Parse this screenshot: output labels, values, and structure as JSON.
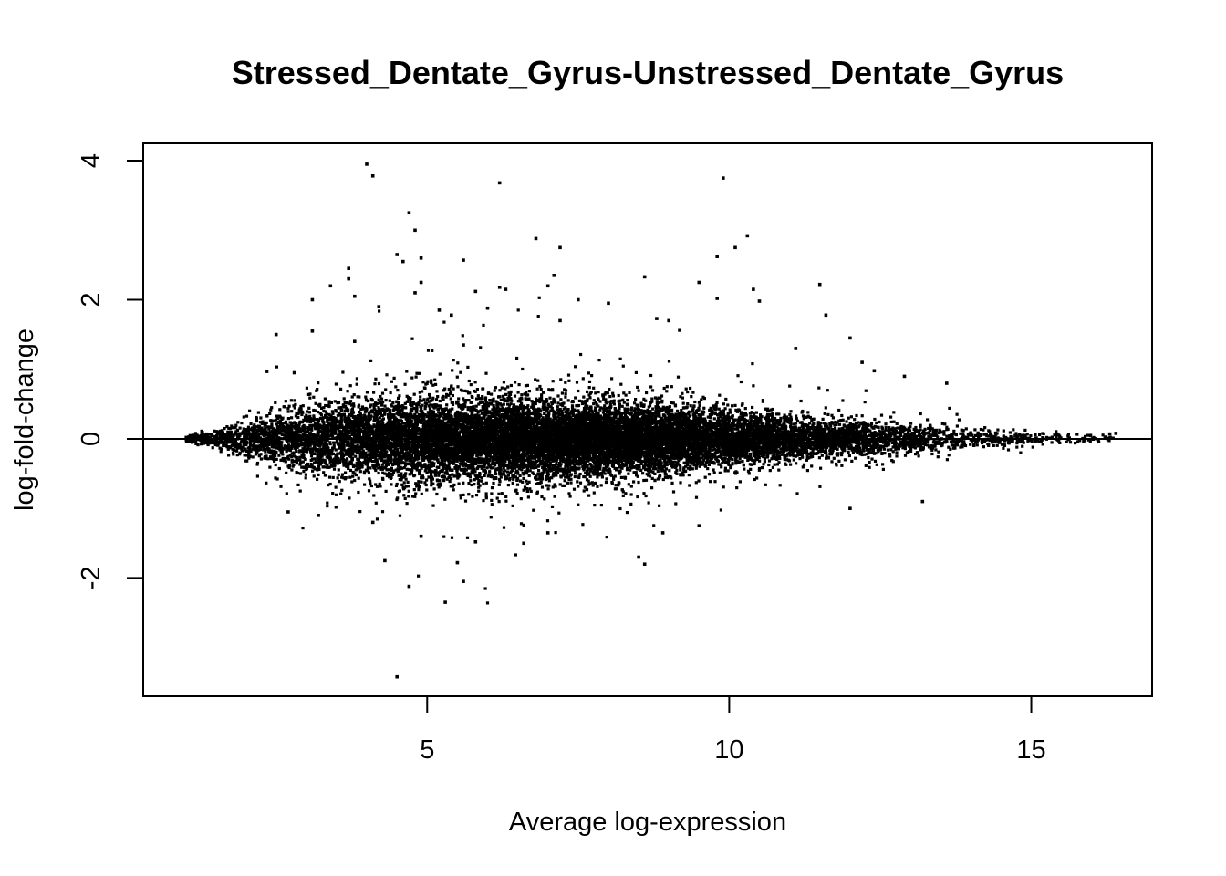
{
  "chart_data": {
    "type": "scatter",
    "title": "Stressed_Dentate_Gyrus-Unstressed_Dentate_Gyrus",
    "xlabel": "Average log-expression",
    "ylabel": "log-fold-change",
    "xlim": [
      0.3,
      17
    ],
    "ylim": [
      -3.7,
      4.25
    ],
    "xticks": [
      5,
      10,
      15
    ],
    "yticks": [
      -2,
      0,
      2,
      4
    ],
    "xtick_labels": [
      "5",
      "10",
      "15"
    ],
    "ytick_labels": [
      "-2",
      "0",
      "2",
      "4"
    ],
    "reference_line_y": 0,
    "grid": false,
    "legend": "none",
    "point_color": "#000000",
    "dense_cloud": {
      "x_range": [
        1.0,
        16.4
      ],
      "center_y": 0,
      "spread_profile": [
        [
          1.0,
          0.02
        ],
        [
          1.5,
          0.05
        ],
        [
          2.0,
          0.12
        ],
        [
          2.5,
          0.2
        ],
        [
          3.0,
          0.24
        ],
        [
          4.0,
          0.28
        ],
        [
          5.0,
          0.3
        ],
        [
          6.0,
          0.3
        ],
        [
          7.0,
          0.28
        ],
        [
          8.0,
          0.26
        ],
        [
          9.0,
          0.23
        ],
        [
          10.0,
          0.2
        ],
        [
          11.0,
          0.16
        ],
        [
          12.0,
          0.13
        ],
        [
          13.0,
          0.1
        ],
        [
          14.0,
          0.07
        ],
        [
          15.0,
          0.05
        ],
        [
          15.8,
          0.03
        ],
        [
          16.4,
          0.02
        ]
      ],
      "n_points": 16000
    },
    "outliers": [
      {
        "x": 4.0,
        "y": 3.95
      },
      {
        "x": 4.1,
        "y": 3.78
      },
      {
        "x": 6.2,
        "y": 3.68
      },
      {
        "x": 9.9,
        "y": 3.75
      },
      {
        "x": 4.7,
        "y": 3.25
      },
      {
        "x": 4.8,
        "y": 3.0
      },
      {
        "x": 10.3,
        "y": 2.92
      },
      {
        "x": 6.8,
        "y": 2.88
      },
      {
        "x": 10.1,
        "y": 2.75
      },
      {
        "x": 7.2,
        "y": 2.75
      },
      {
        "x": 4.5,
        "y": 2.65
      },
      {
        "x": 9.8,
        "y": 2.62
      },
      {
        "x": 4.9,
        "y": 2.6
      },
      {
        "x": 4.6,
        "y": 2.55
      },
      {
        "x": 5.6,
        "y": 2.57
      },
      {
        "x": 3.7,
        "y": 2.45
      },
      {
        "x": 7.1,
        "y": 2.35
      },
      {
        "x": 3.7,
        "y": 2.3
      },
      {
        "x": 8.6,
        "y": 2.33
      },
      {
        "x": 9.5,
        "y": 2.25
      },
      {
        "x": 4.9,
        "y": 2.25
      },
      {
        "x": 11.5,
        "y": 2.22
      },
      {
        "x": 3.4,
        "y": 2.2
      },
      {
        "x": 6.2,
        "y": 2.18
      },
      {
        "x": 7.0,
        "y": 2.2
      },
      {
        "x": 6.3,
        "y": 2.15
      },
      {
        "x": 10.4,
        "y": 2.15
      },
      {
        "x": 3.8,
        "y": 2.05
      },
      {
        "x": 4.8,
        "y": 2.1
      },
      {
        "x": 5.8,
        "y": 2.12
      },
      {
        "x": 9.8,
        "y": 2.02
      },
      {
        "x": 3.1,
        "y": 2.0
      },
      {
        "x": 10.5,
        "y": 1.98
      },
      {
        "x": 7.5,
        "y": 2.0
      },
      {
        "x": 8.0,
        "y": 1.95
      },
      {
        "x": 4.2,
        "y": 1.9
      },
      {
        "x": 5.2,
        "y": 1.85
      },
      {
        "x": 6.0,
        "y": 1.88
      },
      {
        "x": 11.6,
        "y": 1.78
      },
      {
        "x": 5.4,
        "y": 1.78
      },
      {
        "x": 8.8,
        "y": 1.73
      },
      {
        "x": 9.0,
        "y": 1.7
      },
      {
        "x": 7.2,
        "y": 1.7
      },
      {
        "x": 3.1,
        "y": 1.55
      },
      {
        "x": 2.5,
        "y": 1.5
      },
      {
        "x": 12.0,
        "y": 1.45
      },
      {
        "x": 3.8,
        "y": 1.4
      },
      {
        "x": 5.6,
        "y": 1.35
      },
      {
        "x": 11.1,
        "y": 1.3
      },
      {
        "x": 12.2,
        "y": 1.1
      },
      {
        "x": 12.4,
        "y": 0.98
      },
      {
        "x": 12.9,
        "y": 0.9
      },
      {
        "x": 13.6,
        "y": 0.8
      },
      {
        "x": 2.8,
        "y": 0.95
      },
      {
        "x": 2.7,
        "y": -1.05
      },
      {
        "x": 3.2,
        "y": -1.1
      },
      {
        "x": 4.1,
        "y": -1.2
      },
      {
        "x": 4.9,
        "y": -1.4
      },
      {
        "x": 5.8,
        "y": -1.48
      },
      {
        "x": 6.6,
        "y": -1.5
      },
      {
        "x": 7.0,
        "y": -1.35
      },
      {
        "x": 9.5,
        "y": -1.25
      },
      {
        "x": 8.9,
        "y": -1.35
      },
      {
        "x": 4.3,
        "y": -1.75
      },
      {
        "x": 8.5,
        "y": -1.7
      },
      {
        "x": 8.6,
        "y": -1.8
      },
      {
        "x": 5.5,
        "y": -1.78
      },
      {
        "x": 5.6,
        "y": -2.05
      },
      {
        "x": 4.7,
        "y": -2.12
      },
      {
        "x": 5.3,
        "y": -2.35
      },
      {
        "x": 12.0,
        "y": -1.0
      },
      {
        "x": 13.2,
        "y": -0.9
      },
      {
        "x": 4.5,
        "y": -3.42
      },
      {
        "x": 16.3,
        "y": 0.07
      },
      {
        "x": 16.4,
        "y": 0.08
      }
    ]
  }
}
